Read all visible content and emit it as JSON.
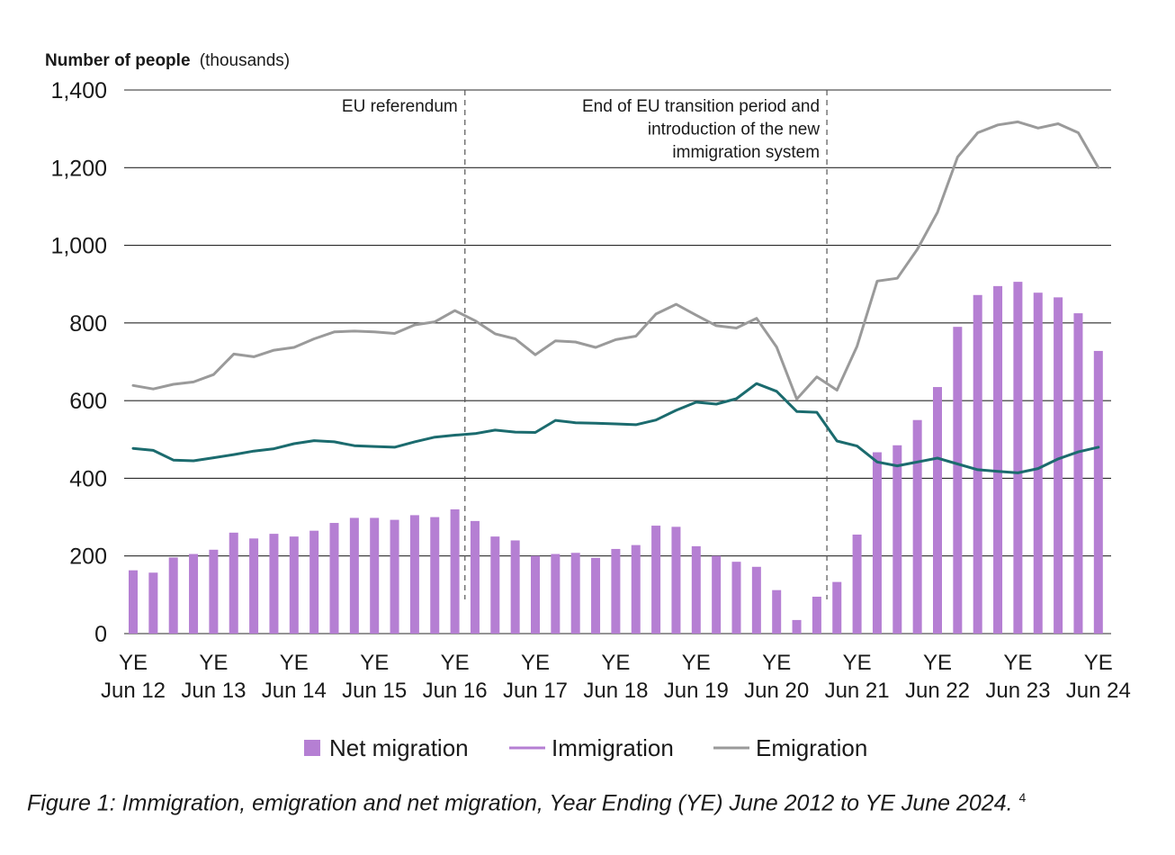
{
  "chart_data": {
    "type": "bar+line",
    "ylabel_bold": "Number of people",
    "ylabel_unit": "(thousands)",
    "ylim": [
      0,
      1400
    ],
    "yticks": [
      "0",
      "200",
      "400",
      "600",
      "800",
      "1,000",
      "1,200",
      "1,400"
    ],
    "ytick_values": [
      0,
      200,
      400,
      600,
      800,
      1000,
      1200,
      1400
    ],
    "xtick_lines": [
      [
        "YE",
        "Jun 12"
      ],
      [
        "YE",
        "Jun 13"
      ],
      [
        "YE",
        "Jun 14"
      ],
      [
        "YE",
        "Jun 15"
      ],
      [
        "YE",
        "Jun 16"
      ],
      [
        "YE",
        "Jun 17"
      ],
      [
        "YE",
        "Jun 18"
      ],
      [
        "YE",
        "Jun 19"
      ],
      [
        "YE",
        "Jun 20"
      ],
      [
        "YE",
        "Jun 21"
      ],
      [
        "YE",
        "Jun 22"
      ],
      [
        "YE",
        "Jun 23"
      ],
      [
        "YE",
        "Jun 24"
      ]
    ],
    "xtick_index": [
      0,
      4,
      8,
      12,
      16,
      20,
      24,
      28,
      32,
      36,
      40,
      44,
      48
    ],
    "annotations": [
      {
        "lines": [
          "EU referendum"
        ],
        "at_index": 16.5
      },
      {
        "lines": [
          "End of EU transition period and",
          "introduction of the new",
          "immigration system"
        ],
        "at_index": 34.5
      }
    ],
    "grid": true,
    "legend_position": "bottom",
    "series": [
      {
        "name": "Net migration",
        "kind": "bar",
        "color": "#b57fd3",
        "values": [
          163,
          157,
          196,
          205,
          216,
          260,
          245,
          257,
          250,
          265,
          285,
          298,
          298,
          293,
          305,
          300,
          320,
          290,
          250,
          240,
          200,
          205,
          208,
          195,
          218,
          228,
          278,
          275,
          225,
          200,
          185,
          172,
          112,
          35,
          95,
          133,
          255,
          467,
          485,
          550,
          635,
          790,
          872,
          895,
          906,
          878,
          866,
          825,
          728
        ]
      },
      {
        "name": "Immigration",
        "kind": "line",
        "color": "#1b6b6e",
        "legend_color": "#b57fd3",
        "values": [
          477,
          472,
          447,
          445,
          453,
          461,
          470,
          476,
          489,
          497,
          494,
          484,
          482,
          480,
          494,
          506,
          511,
          515,
          524,
          519,
          518,
          549,
          543,
          542,
          540,
          538,
          550,
          575,
          596,
          591,
          605,
          644,
          624,
          572,
          570,
          496,
          483,
          442,
          432,
          442,
          452,
          437,
          422,
          418,
          414,
          425,
          450,
          468,
          480
        ]
      },
      {
        "name": "Emigration",
        "kind": "line",
        "color": "#9a9a9a",
        "values": [
          639,
          630,
          642,
          648,
          667,
          720,
          713,
          730,
          737,
          759,
          777,
          779,
          777,
          773,
          795,
          803,
          832,
          806,
          772,
          759,
          718,
          754,
          751,
          737,
          757,
          766,
          823,
          848,
          820,
          793,
          787,
          812,
          738,
          604,
          661,
          627,
          740,
          908,
          915,
          990,
          1085,
          1227,
          1290,
          1310,
          1318,
          1302,
          1313,
          1290,
          1200
        ]
      }
    ]
  },
  "caption": {
    "text": "Figure 1: Immigration, emigration and net migration, Year Ending (YE) June 2012 to YE June 2024.",
    "footnote": "4"
  }
}
